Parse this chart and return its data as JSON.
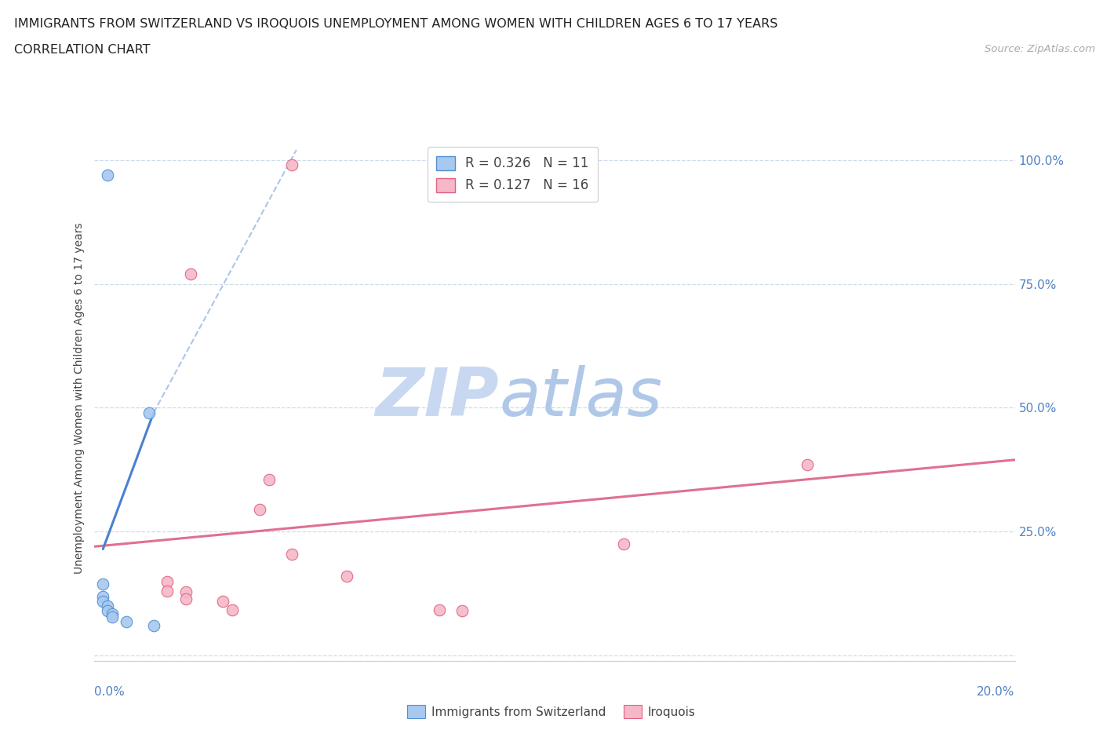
{
  "title_line1": "IMMIGRANTS FROM SWITZERLAND VS IROQUOIS UNEMPLOYMENT AMONG WOMEN WITH CHILDREN AGES 6 TO 17 YEARS",
  "title_line2": "CORRELATION CHART",
  "source_text": "Source: ZipAtlas.com",
  "ylabel": "Unemployment Among Women with Children Ages 6 to 17 years",
  "xlim": [
    0.0,
    0.2
  ],
  "ylim": [
    -0.01,
    1.05
  ],
  "legend_entries": [
    {
      "label": "R = 0.326   N = 11",
      "color": "#a8c8f0"
    },
    {
      "label": "R = 0.127   N = 16",
      "color": "#f4b8c8"
    }
  ],
  "swiss_dots": [
    [
      0.003,
      0.97
    ],
    [
      0.012,
      0.49
    ],
    [
      0.002,
      0.145
    ],
    [
      0.002,
      0.12
    ],
    [
      0.002,
      0.11
    ],
    [
      0.003,
      0.1
    ],
    [
      0.003,
      0.09
    ],
    [
      0.004,
      0.085
    ],
    [
      0.004,
      0.078
    ],
    [
      0.007,
      0.068
    ],
    [
      0.013,
      0.06
    ]
  ],
  "iroquois_dots": [
    [
      0.043,
      0.99
    ],
    [
      0.021,
      0.77
    ],
    [
      0.038,
      0.355
    ],
    [
      0.036,
      0.295
    ],
    [
      0.043,
      0.205
    ],
    [
      0.055,
      0.16
    ],
    [
      0.016,
      0.15
    ],
    [
      0.016,
      0.13
    ],
    [
      0.02,
      0.128
    ],
    [
      0.02,
      0.115
    ],
    [
      0.028,
      0.11
    ],
    [
      0.03,
      0.093
    ],
    [
      0.075,
      0.093
    ],
    [
      0.115,
      0.225
    ],
    [
      0.08,
      0.09
    ],
    [
      0.155,
      0.385
    ]
  ],
  "swiss_trendline_solid": [
    [
      0.002,
      0.215
    ],
    [
      0.013,
      0.49
    ]
  ],
  "swiss_trendline_dashed": [
    [
      0.013,
      0.49
    ],
    [
      0.044,
      1.02
    ]
  ],
  "iroquois_trendline": [
    [
      0.0,
      0.22
    ],
    [
      0.2,
      0.395
    ]
  ],
  "dot_size": 110,
  "swiss_color": "#a8c8f0",
  "iroquois_color": "#f4b8c8",
  "swiss_edge_color": "#5090d0",
  "iroquois_edge_color": "#e06080",
  "swiss_trend_color": "#4a80d0",
  "iroquois_trend_color": "#e07090",
  "grid_color": "#c8d8ec",
  "background_color": "#ffffff",
  "title_fontsize": 11.5,
  "subtitle_fontsize": 11.5,
  "tick_color": "#5080c0",
  "tick_fontsize": 11,
  "watermark_zip": "ZIP",
  "watermark_atlas": "atlas",
  "watermark_color_zip": "#c8d8f0",
  "watermark_color_atlas": "#b0c8e8",
  "watermark_fontsize": 62
}
